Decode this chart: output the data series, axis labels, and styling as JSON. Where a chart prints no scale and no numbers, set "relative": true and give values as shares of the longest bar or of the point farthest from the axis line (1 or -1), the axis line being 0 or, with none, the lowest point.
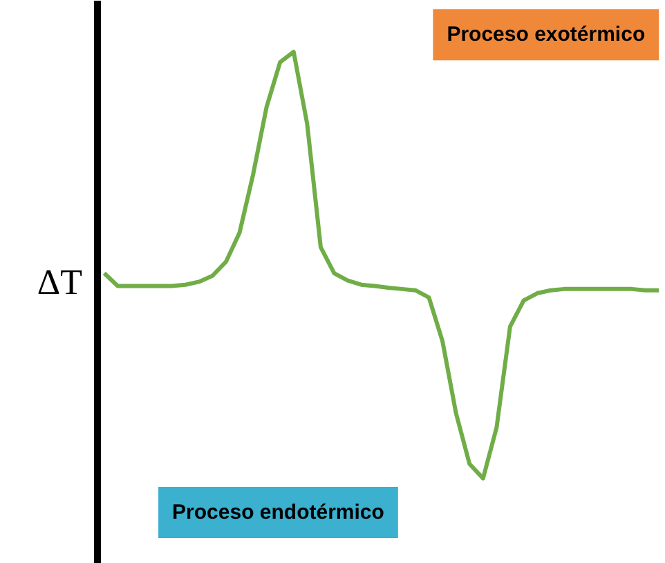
{
  "chart_data": {
    "type": "line",
    "relative": true,
    "ylabel": "ΔT",
    "annotations": [
      "Proceso exotérmico",
      "Proceso endotérmico"
    ],
    "categories": [
      null,
      null,
      null,
      null,
      null,
      null,
      null,
      null,
      null,
      null,
      null,
      null,
      null,
      null,
      null,
      null,
      null,
      null,
      null,
      null,
      null,
      null,
      null,
      null,
      null,
      null,
      null,
      null,
      null,
      null,
      null,
      null,
      null,
      null,
      null,
      null,
      null,
      null,
      null,
      null,
      null,
      null
    ],
    "series": [
      {
        "color": "#70ad47",
        "values": [
          0.481,
          0.451,
          0.451,
          0.451,
          0.451,
          0.451,
          0.454,
          0.461,
          0.475,
          0.508,
          0.576,
          0.712,
          0.871,
          0.976,
          1,
          0.831,
          0.542,
          0.481,
          0.464,
          0.454,
          0.451,
          0.447,
          0.444,
          0.441,
          0.424,
          0.322,
          0.153,
          0.034,
          0,
          0.119,
          0.356,
          0.417,
          0.434,
          0.441,
          0.444,
          0.444,
          0.444,
          0.444,
          0.444,
          0.444,
          0.441,
          0.441
        ]
      }
    ],
    "marker": "none",
    "line_style": "solid"
  }
}
